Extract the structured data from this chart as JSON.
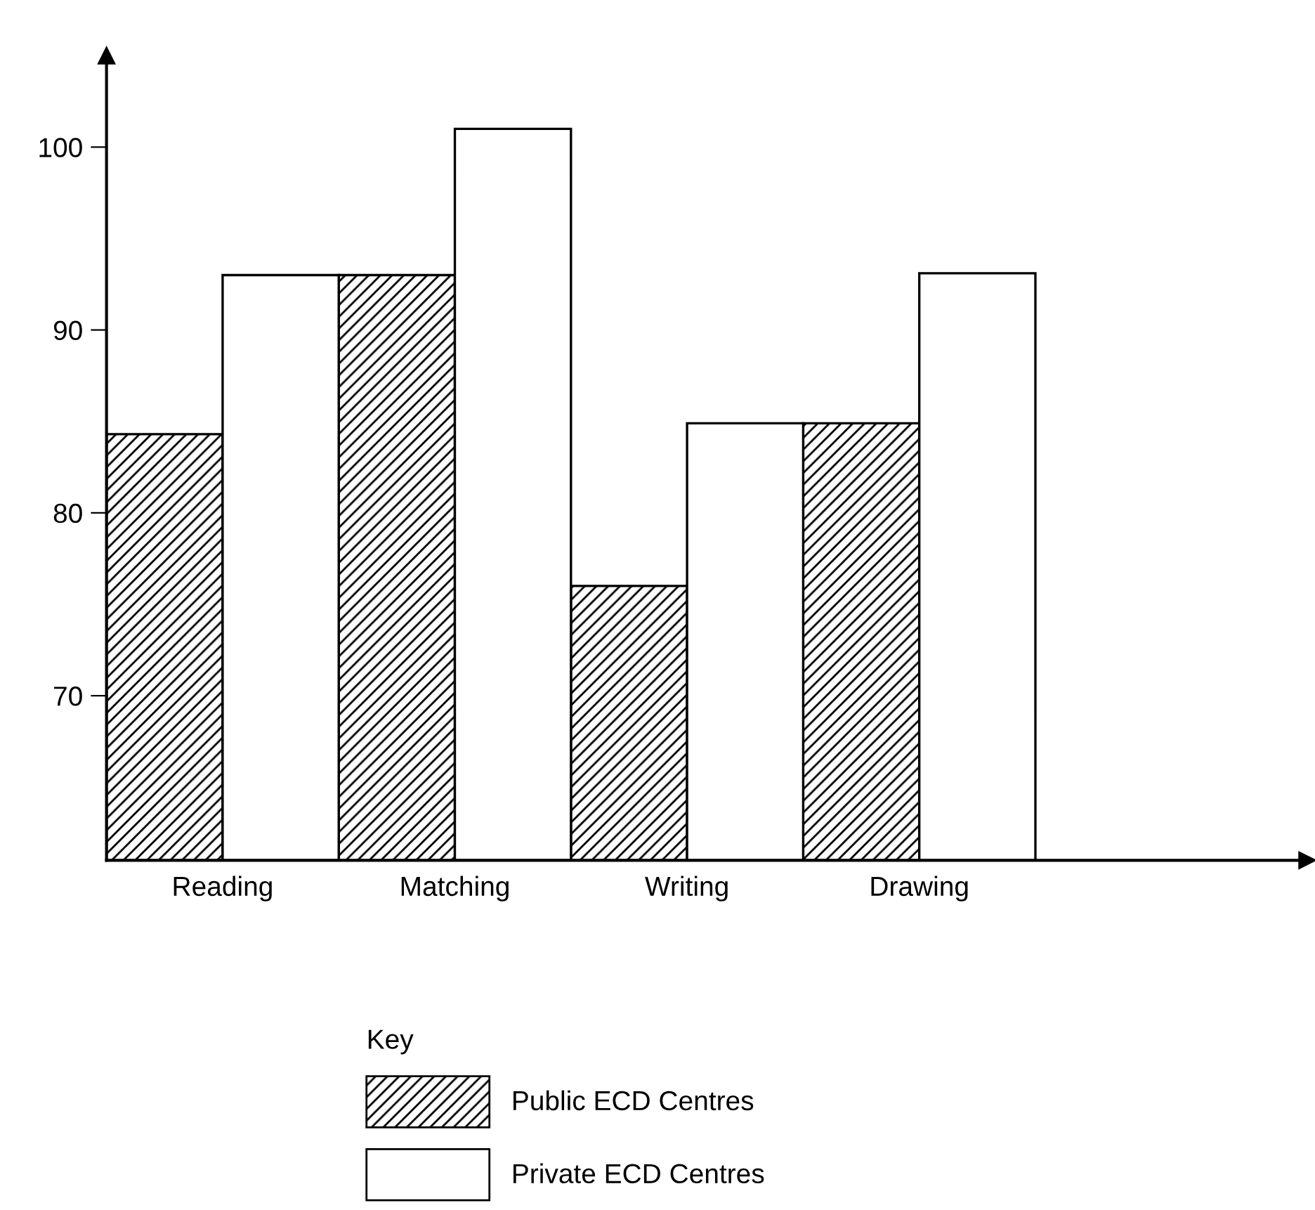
{
  "chart_data": {
    "type": "bar",
    "categories": [
      "Reading",
      "Matching",
      "Writing",
      "Drawing"
    ],
    "series": [
      {
        "name": "Public ECD Centres",
        "color": "#000000",
        "values": [
          84.3,
          93,
          76,
          84.9
        ]
      },
      {
        "name": "Private ECD Centres",
        "color": "#ffffff",
        "values": [
          93,
          101,
          84.9,
          93.1
        ]
      }
    ],
    "ylim": [
      61,
      105
    ],
    "yticks": [
      70,
      80,
      90,
      100
    ],
    "grid": false,
    "legend": "bottom",
    "legend_title": "Key"
  }
}
